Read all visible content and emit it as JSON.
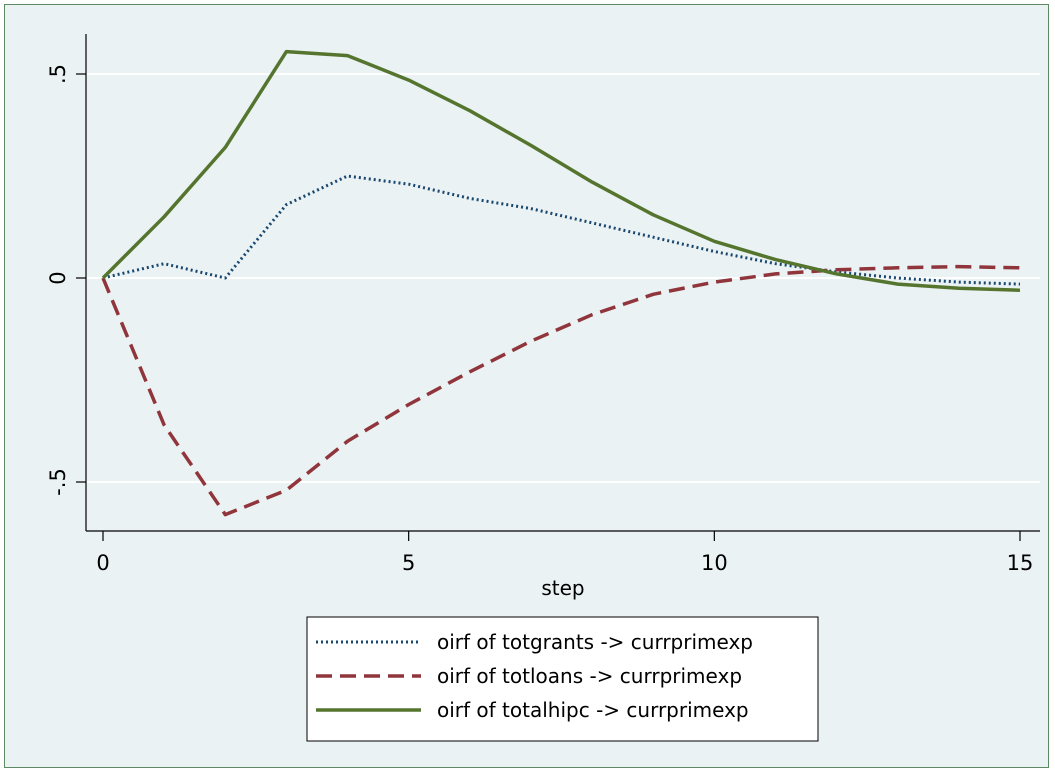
{
  "chart_data": {
    "type": "line",
    "xlabel": "step",
    "ylabel": "",
    "xlim": [
      0,
      15
    ],
    "ylim": [
      -0.6,
      0.58
    ],
    "xticks": [
      0,
      5,
      10,
      15
    ],
    "xtick_labels": [
      "0",
      "5",
      "10",
      "15"
    ],
    "yticks": [
      -0.5,
      0,
      0.5
    ],
    "ytick_labels": [
      "-.5",
      "0",
      ".5"
    ],
    "grid": "horizontal",
    "legend_position": "bottom",
    "x": [
      0,
      1,
      2,
      3,
      4,
      5,
      6,
      7,
      8,
      9,
      10,
      11,
      12,
      13,
      14,
      15
    ],
    "series": [
      {
        "name": "oirf of totgrants ->   currprimexp",
        "color": "#1a476f",
        "style": "dotted",
        "values": [
          0,
          0.035,
          0,
          0.18,
          0.25,
          0.23,
          0.195,
          0.17,
          0.135,
          0.1,
          0.065,
          0.035,
          0.015,
          0.0,
          -0.01,
          -0.015
        ]
      },
      {
        "name": "oirf of totloans -> currprimexp",
        "color": "#90353b",
        "style": "dashed",
        "values": [
          0,
          -0.36,
          -0.58,
          -0.52,
          -0.4,
          -0.31,
          -0.23,
          -0.155,
          -0.09,
          -0.04,
          -0.01,
          0.01,
          0.02,
          0.025,
          0.028,
          0.025
        ]
      },
      {
        "name": "oirf of totalhipc -> currprimexp",
        "color": "#55752f",
        "style": "solid",
        "values": [
          0,
          0.15,
          0.32,
          0.555,
          0.545,
          0.485,
          0.41,
          0.325,
          0.235,
          0.155,
          0.09,
          0.045,
          0.01,
          -0.015,
          -0.025,
          -0.03
        ]
      }
    ]
  }
}
